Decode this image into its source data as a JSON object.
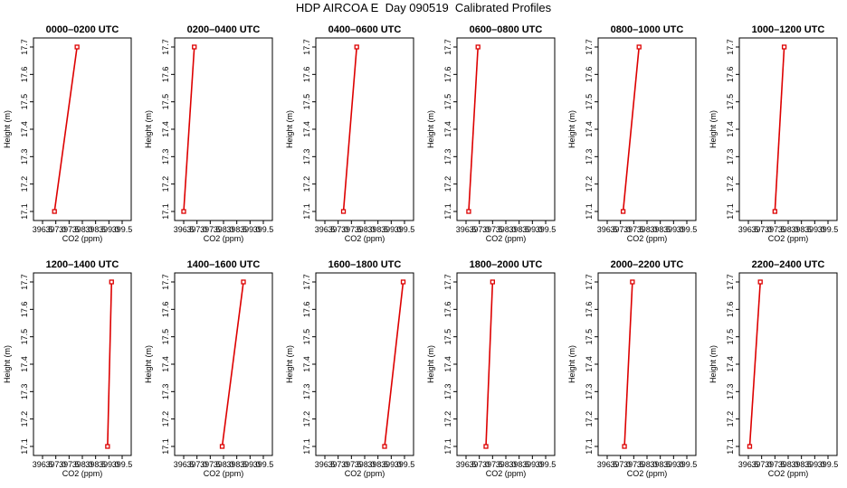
{
  "figure_title": "HDP AIRCOA E  Day 090519  Calibrated Profiles",
  "colors": {
    "line": "#dd0000",
    "axis": "#000000",
    "background": "#ffffff"
  },
  "chart_data": [
    {
      "type": "line",
      "title": "0000–0200 UTC",
      "xlabel": "CO2 (ppm)",
      "ylabel": "Height (m)",
      "xlim": [
        396.5,
        399.5
      ],
      "ylim": [
        17.1,
        17.7
      ],
      "xticks": [
        "396.5",
        "397.0",
        "397.5",
        "398.0",
        "398.5",
        "399.0",
        "399.5"
      ],
      "yticks": [
        "17.1",
        "17.2",
        "17.3",
        "17.4",
        "17.5",
        "17.6",
        "17.7"
      ],
      "series": [
        {
          "x": [
            396.95,
            397.8
          ],
          "y": [
            17.1,
            17.7
          ]
        }
      ]
    },
    {
      "type": "line",
      "title": "0200–0400 UTC",
      "xlabel": "CO2 (ppm)",
      "ylabel": "Height (m)",
      "xlim": [
        396.5,
        399.5
      ],
      "ylim": [
        17.1,
        17.7
      ],
      "xticks": [
        "396.5",
        "397.0",
        "397.5",
        "398.0",
        "398.5",
        "399.0",
        "399.5"
      ],
      "yticks": [
        "17.1",
        "17.2",
        "17.3",
        "17.4",
        "17.5",
        "17.6",
        "17.7"
      ],
      "series": [
        {
          "x": [
            396.5,
            396.9
          ],
          "y": [
            17.1,
            17.7
          ]
        }
      ]
    },
    {
      "type": "line",
      "title": "0400–0600 UTC",
      "xlabel": "CO2 (ppm)",
      "ylabel": "Height (m)",
      "xlim": [
        396.5,
        399.5
      ],
      "ylim": [
        17.1,
        17.7
      ],
      "xticks": [
        "396.5",
        "397.0",
        "397.5",
        "398.0",
        "398.5",
        "399.0",
        "399.5"
      ],
      "yticks": [
        "17.1",
        "17.2",
        "17.3",
        "17.4",
        "17.5",
        "17.6",
        "17.7"
      ],
      "series": [
        {
          "x": [
            397.2,
            397.7
          ],
          "y": [
            17.1,
            17.7
          ]
        }
      ]
    },
    {
      "type": "line",
      "title": "0600–0800 UTC",
      "xlabel": "CO2 (ppm)",
      "ylabel": "Height (m)",
      "xlim": [
        396.5,
        399.5
      ],
      "ylim": [
        17.1,
        17.7
      ],
      "xticks": [
        "396.5",
        "397.0",
        "397.5",
        "398.0",
        "398.5",
        "399.0",
        "399.5"
      ],
      "yticks": [
        "17.1",
        "17.2",
        "17.3",
        "17.4",
        "17.5",
        "17.6",
        "17.7"
      ],
      "series": [
        {
          "x": [
            396.6,
            396.95
          ],
          "y": [
            17.1,
            17.7
          ]
        }
      ]
    },
    {
      "type": "line",
      "title": "0800–1000 UTC",
      "xlabel": "CO2 (ppm)",
      "ylabel": "Height (m)",
      "xlim": [
        396.5,
        399.5
      ],
      "ylim": [
        17.1,
        17.7
      ],
      "xticks": [
        "396.5",
        "397.0",
        "397.5",
        "398.0",
        "398.5",
        "399.0",
        "399.5"
      ],
      "yticks": [
        "17.1",
        "17.2",
        "17.3",
        "17.4",
        "17.5",
        "17.6",
        "17.7"
      ],
      "series": [
        {
          "x": [
            397.1,
            397.7
          ],
          "y": [
            17.1,
            17.7
          ]
        }
      ]
    },
    {
      "type": "line",
      "title": "1000–1200 UTC",
      "xlabel": "CO2 (ppm)",
      "ylabel": "Height (m)",
      "xlim": [
        396.5,
        399.5
      ],
      "ylim": [
        17.1,
        17.7
      ],
      "xticks": [
        "396.5",
        "397.0",
        "397.5",
        "398.0",
        "398.5",
        "399.0",
        "399.5"
      ],
      "yticks": [
        "17.1",
        "17.2",
        "17.3",
        "17.4",
        "17.5",
        "17.6",
        "17.7"
      ],
      "series": [
        {
          "x": [
            397.5,
            397.85
          ],
          "y": [
            17.1,
            17.7
          ]
        }
      ]
    },
    {
      "type": "line",
      "title": "1200–1400 UTC",
      "xlabel": "CO2 (ppm)",
      "ylabel": "Height (m)",
      "xlim": [
        396.5,
        399.5
      ],
      "ylim": [
        17.1,
        17.7
      ],
      "xticks": [
        "396.5",
        "397.0",
        "397.5",
        "398.0",
        "398.5",
        "399.0",
        "399.5"
      ],
      "yticks": [
        "17.1",
        "17.2",
        "17.3",
        "17.4",
        "17.5",
        "17.6",
        "17.7"
      ],
      "series": [
        {
          "x": [
            398.95,
            399.1
          ],
          "y": [
            17.1,
            17.7
          ]
        }
      ]
    },
    {
      "type": "line",
      "title": "1400–1600 UTC",
      "xlabel": "CO2 (ppm)",
      "ylabel": "Height (m)",
      "xlim": [
        396.5,
        399.5
      ],
      "ylim": [
        17.1,
        17.7
      ],
      "xticks": [
        "396.5",
        "397.0",
        "397.5",
        "398.0",
        "398.5",
        "399.0",
        "399.5"
      ],
      "yticks": [
        "17.1",
        "17.2",
        "17.3",
        "17.4",
        "17.5",
        "17.6",
        "17.7"
      ],
      "series": [
        {
          "x": [
            397.95,
            398.75
          ],
          "y": [
            17.1,
            17.7
          ]
        }
      ]
    },
    {
      "type": "line",
      "title": "1600–1800 UTC",
      "xlabel": "CO2 (ppm)",
      "ylabel": "Height (m)",
      "xlim": [
        396.5,
        399.5
      ],
      "ylim": [
        17.1,
        17.7
      ],
      "xticks": [
        "396.5",
        "397.0",
        "397.5",
        "398.0",
        "398.5",
        "399.0",
        "399.5"
      ],
      "yticks": [
        "17.1",
        "17.2",
        "17.3",
        "17.4",
        "17.5",
        "17.6",
        "17.7"
      ],
      "series": [
        {
          "x": [
            398.75,
            399.45
          ],
          "y": [
            17.1,
            17.7
          ]
        }
      ]
    },
    {
      "type": "line",
      "title": "1800–2000 UTC",
      "xlabel": "CO2 (ppm)",
      "ylabel": "Height (m)",
      "xlim": [
        396.5,
        399.5
      ],
      "ylim": [
        17.1,
        17.7
      ],
      "xticks": [
        "396.5",
        "397.0",
        "397.5",
        "398.0",
        "398.5",
        "399.0",
        "399.5"
      ],
      "yticks": [
        "17.1",
        "17.2",
        "17.3",
        "17.4",
        "17.5",
        "17.6",
        "17.7"
      ],
      "series": [
        {
          "x": [
            397.25,
            397.5
          ],
          "y": [
            17.1,
            17.7
          ]
        }
      ]
    },
    {
      "type": "line",
      "title": "2000–2200 UTC",
      "xlabel": "CO2 (ppm)",
      "ylabel": "Height (m)",
      "xlim": [
        396.5,
        399.5
      ],
      "ylim": [
        17.1,
        17.7
      ],
      "xticks": [
        "396.5",
        "397.0",
        "397.5",
        "398.0",
        "398.5",
        "399.0",
        "399.5"
      ],
      "yticks": [
        "17.1",
        "17.2",
        "17.3",
        "17.4",
        "17.5",
        "17.6",
        "17.7"
      ],
      "series": [
        {
          "x": [
            397.15,
            397.45
          ],
          "y": [
            17.1,
            17.7
          ]
        }
      ]
    },
    {
      "type": "line",
      "title": "2200–2400 UTC",
      "xlabel": "CO2 (ppm)",
      "ylabel": "Height (m)",
      "xlim": [
        396.5,
        399.5
      ],
      "ylim": [
        17.1,
        17.7
      ],
      "xticks": [
        "396.5",
        "397.0",
        "397.5",
        "398.0",
        "398.5",
        "399.0",
        "399.5"
      ],
      "yticks": [
        "17.1",
        "17.2",
        "17.3",
        "17.4",
        "17.5",
        "17.6",
        "17.7"
      ],
      "series": [
        {
          "x": [
            396.55,
            396.95
          ],
          "y": [
            17.1,
            17.7
          ]
        }
      ]
    }
  ]
}
